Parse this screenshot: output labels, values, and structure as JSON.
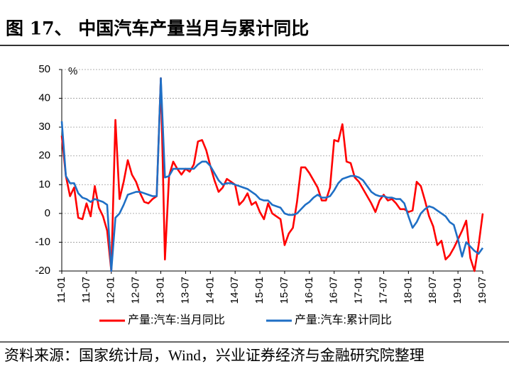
{
  "chart_data": {
    "type": "line",
    "title": "图 17、 中国汽车产量当月与累计同比",
    "y_unit": "%",
    "source": "资料来源：国家统计局，Wind，兴业证券经济与金融研究院整理",
    "categories": [
      "11-01",
      null,
      null,
      null,
      null,
      null,
      "11-07",
      null,
      null,
      null,
      null,
      null,
      "12-01",
      null,
      null,
      null,
      null,
      null,
      "12-07",
      null,
      null,
      null,
      null,
      null,
      "13-01",
      null,
      null,
      null,
      null,
      null,
      "13-07",
      null,
      null,
      null,
      null,
      null,
      "14-01",
      null,
      null,
      null,
      null,
      null,
      "14-07",
      null,
      null,
      null,
      null,
      null,
      "15-01",
      null,
      null,
      null,
      null,
      null,
      "15-07",
      null,
      null,
      null,
      null,
      null,
      "16-01",
      null,
      null,
      null,
      null,
      null,
      "16-07",
      null,
      null,
      null,
      null,
      null,
      "17-01",
      null,
      null,
      null,
      null,
      null,
      "17-07",
      null,
      null,
      null,
      null,
      null,
      "18-01",
      null,
      null,
      null,
      null,
      null,
      "18-07",
      null,
      null,
      null,
      null,
      null,
      "19-01",
      null,
      null,
      null,
      null,
      null,
      "19-07"
    ],
    "series": [
      {
        "name": "产量:汽车:当月同比",
        "color": "#ff0000",
        "values": [
          27,
          13,
          6,
          9,
          -1.5,
          -2,
          3.5,
          -1,
          9.5,
          2,
          -1,
          -6,
          -20,
          32.5,
          5,
          11,
          18.5,
          13.5,
          11,
          7,
          4,
          3.5,
          5,
          6,
          47,
          -16,
          13,
          18,
          15.5,
          13.5,
          15.5,
          14.5,
          17,
          25,
          25.5,
          22,
          16.5,
          11.5,
          7.5,
          9,
          12,
          11,
          10,
          3,
          4.5,
          7,
          3,
          4,
          0.5,
          -2,
          3.5,
          0,
          -1,
          -2,
          -11,
          -7,
          -5,
          4,
          16,
          16,
          14,
          11.5,
          9,
          4.5,
          4.5,
          9,
          25.5,
          25,
          31,
          18,
          17.5,
          12.5,
          11,
          8.5,
          6,
          3.5,
          0.5,
          4.5,
          6.5,
          4.5,
          5,
          3.5,
          1.5,
          1.5,
          0.5,
          1,
          11,
          9.5,
          4.5,
          -1,
          -4.5,
          -11,
          -9.5,
          -16,
          -14.5,
          -12,
          -9,
          -6,
          -2.5,
          -15.5,
          -20,
          -11,
          0
        ]
      },
      {
        "name": "产量:汽车:累计同比",
        "color": "#1f6fc5",
        "values": [
          32,
          13,
          10.5,
          10.5,
          7,
          5.5,
          5,
          4,
          5,
          4.5,
          4,
          3,
          -20,
          -1.5,
          0,
          3,
          6.5,
          7,
          7.5,
          7.5,
          7,
          6.5,
          6,
          6,
          47,
          12.5,
          13,
          15.5,
          15.5,
          15.5,
          15.5,
          15.5,
          15.5,
          17,
          18,
          18,
          16.5,
          14,
          11.5,
          10,
          10.5,
          10.5,
          10,
          9.5,
          9,
          8.5,
          7.5,
          6.5,
          5,
          4.5,
          4.5,
          3,
          2.5,
          2,
          0,
          -0.5,
          -0.5,
          0,
          1.5,
          3,
          4,
          5.5,
          6.5,
          5.5,
          5.5,
          6,
          8,
          10.5,
          12,
          12.5,
          13,
          13,
          12.5,
          11.5,
          9.5,
          7.5,
          6.5,
          6,
          6,
          5.5,
          5.5,
          5,
          5,
          3.5,
          -1,
          -5,
          -3,
          0,
          1.5,
          2.5,
          2,
          1,
          0,
          -1,
          -3,
          -4,
          -9,
          -15,
          -10,
          -11.5,
          -13,
          -14,
          -12
        ]
      }
    ],
    "ylim": [
      -20,
      50
    ],
    "yticks": [
      -20,
      -10,
      0,
      10,
      20,
      30,
      40,
      50
    ],
    "grid": true,
    "legend": "bottom"
  }
}
